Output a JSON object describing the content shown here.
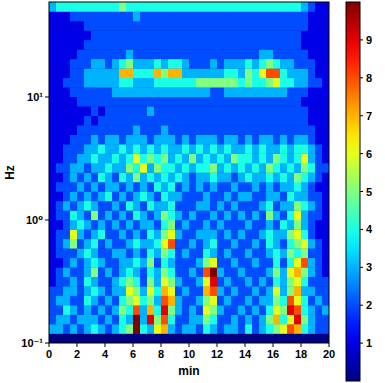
{
  "chart_data": {
    "type": "heatmap",
    "x_label": "min",
    "y_label": "Hz",
    "log": "y",
    "xlim": [
      0,
      20
    ],
    "ylim": [
      0.1,
      59.16
    ],
    "xticks": [
      0,
      2,
      4,
      6,
      8,
      10,
      12,
      14,
      16,
      18,
      20
    ],
    "yticks": [
      {
        "value": 0.1,
        "label": "10⁻¹"
      },
      {
        "value": 1,
        "label": "10⁰"
      },
      {
        "value": 10,
        "label": "10¹"
      }
    ],
    "color_range": [
      0,
      10
    ],
    "color_ticks": [
      1,
      2,
      3,
      4,
      5,
      6,
      7,
      8,
      9
    ],
    "x_edges": [
      0,
      0.5,
      1,
      1.5,
      2,
      2.5,
      3,
      3.5,
      4,
      4.5,
      5,
      5.5,
      6,
      6.5,
      7,
      7.5,
      8,
      8.5,
      9,
      9.5,
      10,
      10.5,
      11,
      11.5,
      12,
      12.5,
      13,
      13.5,
      14,
      14.5,
      15,
      15.5,
      16,
      16.5,
      17,
      17.5,
      18,
      18.5,
      19,
      19.5,
      20
    ],
    "y_edges": [
      0.1,
      0.1194,
      0.1426,
      0.1702,
      0.2032,
      0.2427,
      0.2897,
      0.3459,
      0.413,
      0.4932,
      0.5888,
      0.7031,
      0.8395,
      1.002,
      1.197,
      1.429,
      1.706,
      2.037,
      2.432,
      2.904,
      3.467,
      4.14,
      4.943,
      5.902,
      7.047,
      8.414,
      10.05,
      12,
      14.32,
      17.1,
      20.42,
      24.38,
      29.11,
      34.75,
      41.5,
      49.55,
      59.16
    ],
    "cells": [
      [
        0,
        0,
        0,
        0,
        0,
        0,
        0,
        0,
        0,
        0,
        0,
        0,
        0,
        0,
        0,
        0,
        0,
        0,
        0,
        0,
        0,
        0,
        0,
        0,
        0,
        0,
        0,
        0,
        0,
        0,
        0,
        0,
        0,
        0,
        0,
        0,
        0,
        0,
        0,
        0
      ],
      [
        3,
        3,
        2,
        3,
        2,
        3,
        4,
        3,
        2,
        3,
        4,
        5,
        10,
        4,
        3,
        6,
        7,
        3,
        2,
        3,
        3,
        2,
        4,
        3,
        2,
        3,
        3,
        2,
        4,
        2,
        3,
        4,
        5,
        6,
        8,
        7,
        4,
        3,
        2,
        2
      ],
      [
        2,
        3,
        3,
        2,
        3,
        3,
        3,
        2,
        3,
        2,
        4,
        3,
        10,
        3,
        9,
        5,
        8,
        4,
        2,
        2,
        3,
        3,
        5,
        4,
        2,
        2,
        3,
        2,
        3,
        2,
        3,
        5,
        7,
        4,
        6,
        9,
        5,
        3,
        2,
        2
      ],
      [
        2,
        2,
        4,
        3,
        2,
        3,
        2,
        3,
        2,
        3,
        5,
        4,
        8,
        3,
        7,
        4,
        9,
        5,
        3,
        2,
        3,
        2,
        6,
        5,
        3,
        2,
        2,
        3,
        2,
        3,
        2,
        4,
        6,
        5,
        9,
        8,
        4,
        3,
        2,
        3
      ],
      [
        2,
        3,
        3,
        2,
        2,
        4,
        3,
        2,
        3,
        2,
        4,
        5,
        6,
        4,
        5,
        3,
        8,
        7,
        3,
        2,
        2,
        3,
        5,
        6,
        2,
        3,
        2,
        2,
        3,
        2,
        3,
        3,
        5,
        4,
        8,
        6,
        4,
        2,
        3,
        2
      ],
      [
        2,
        2,
        3,
        3,
        2,
        3,
        4,
        3,
        2,
        3,
        3,
        6,
        5,
        3,
        6,
        4,
        7,
        6,
        2,
        3,
        2,
        2,
        7,
        8,
        3,
        2,
        3,
        2,
        2,
        3,
        2,
        3,
        6,
        3,
        5,
        7,
        3,
        3,
        2,
        2
      ],
      [
        1,
        2,
        2,
        3,
        2,
        4,
        3,
        2,
        2,
        3,
        4,
        5,
        4,
        2,
        5,
        3,
        6,
        5,
        3,
        2,
        2,
        3,
        6,
        9,
        2,
        3,
        2,
        2,
        3,
        2,
        3,
        2,
        4,
        3,
        5,
        6,
        4,
        2,
        2,
        2
      ],
      [
        1,
        2,
        3,
        2,
        2,
        3,
        5,
        2,
        3,
        2,
        3,
        4,
        3,
        2,
        4,
        3,
        5,
        4,
        2,
        2,
        3,
        2,
        8,
        10,
        3,
        2,
        2,
        3,
        2,
        2,
        2,
        3,
        5,
        3,
        6,
        7,
        5,
        3,
        2,
        1
      ],
      [
        1,
        1,
        2,
        3,
        2,
        3,
        4,
        3,
        2,
        2,
        3,
        3,
        4,
        3,
        5,
        2,
        4,
        3,
        2,
        2,
        2,
        3,
        5,
        6,
        2,
        2,
        3,
        2,
        2,
        3,
        2,
        2,
        4,
        2,
        4,
        6,
        8,
        3,
        2,
        1
      ],
      [
        1,
        2,
        2,
        2,
        3,
        4,
        3,
        2,
        2,
        3,
        3,
        2,
        3,
        2,
        4,
        3,
        5,
        4,
        2,
        3,
        2,
        2,
        4,
        3,
        2,
        3,
        2,
        2,
        3,
        2,
        2,
        3,
        4,
        3,
        5,
        4,
        5,
        2,
        2,
        1
      ],
      [
        1,
        2,
        3,
        5,
        2,
        3,
        4,
        2,
        3,
        2,
        2,
        3,
        4,
        3,
        3,
        4,
        6,
        8,
        2,
        2,
        3,
        2,
        3,
        4,
        2,
        2,
        3,
        2,
        2,
        3,
        2,
        4,
        3,
        2,
        4,
        5,
        6,
        3,
        2,
        1
      ],
      [
        1,
        2,
        2,
        6,
        3,
        2,
        3,
        4,
        2,
        2,
        3,
        2,
        3,
        2,
        4,
        3,
        5,
        6,
        3,
        2,
        2,
        3,
        3,
        3,
        2,
        3,
        2,
        3,
        2,
        2,
        3,
        4,
        3,
        3,
        5,
        6,
        4,
        2,
        1,
        1
      ],
      [
        1,
        1,
        2,
        3,
        4,
        3,
        2,
        3,
        2,
        3,
        2,
        3,
        2,
        3,
        3,
        2,
        4,
        5,
        2,
        3,
        2,
        2,
        3,
        2,
        3,
        2,
        2,
        2,
        3,
        2,
        2,
        3,
        2,
        4,
        3,
        5,
        3,
        2,
        1,
        1
      ],
      [
        1,
        2,
        2,
        4,
        3,
        2,
        5,
        2,
        3,
        2,
        3,
        2,
        4,
        3,
        2,
        3,
        5,
        4,
        3,
        2,
        3,
        2,
        2,
        3,
        2,
        3,
        2,
        3,
        2,
        3,
        2,
        5,
        3,
        2,
        4,
        6,
        3,
        2,
        2,
        1
      ],
      [
        1,
        2,
        3,
        2,
        3,
        4,
        3,
        2,
        2,
        3,
        2,
        4,
        3,
        2,
        4,
        3,
        3,
        4,
        2,
        2,
        2,
        3,
        3,
        2,
        3,
        2,
        3,
        2,
        2,
        2,
        3,
        4,
        2,
        3,
        3,
        5,
        4,
        3,
        2,
        1
      ],
      [
        1,
        1,
        2,
        3,
        2,
        3,
        2,
        3,
        4,
        2,
        3,
        2,
        3,
        4,
        3,
        2,
        4,
        3,
        3,
        2,
        2,
        2,
        3,
        2,
        2,
        3,
        2,
        3,
        3,
        2,
        2,
        3,
        3,
        2,
        4,
        3,
        3,
        2,
        2,
        1
      ],
      [
        1,
        2,
        2,
        2,
        3,
        2,
        3,
        2,
        3,
        3,
        2,
        3,
        2,
        3,
        2,
        4,
        3,
        4,
        2,
        3,
        2,
        3,
        2,
        3,
        2,
        2,
        3,
        2,
        2,
        3,
        2,
        3,
        2,
        3,
        3,
        4,
        3,
        2,
        1,
        1
      ],
      [
        1,
        1,
        2,
        3,
        2,
        3,
        2,
        4,
        3,
        2,
        4,
        3,
        5,
        3,
        4,
        3,
        4,
        3,
        4,
        3,
        2,
        3,
        3,
        4,
        3,
        3,
        2,
        3,
        4,
        3,
        3,
        4,
        3,
        4,
        3,
        5,
        4,
        3,
        2,
        1
      ],
      [
        1,
        2,
        2,
        3,
        3,
        2,
        3,
        3,
        4,
        3,
        3,
        5,
        4,
        6,
        3,
        5,
        4,
        4,
        3,
        4,
        3,
        4,
        4,
        5,
        3,
        4,
        3,
        4,
        3,
        4,
        3,
        5,
        4,
        3,
        4,
        3,
        5,
        4,
        2,
        2
      ],
      [
        1,
        1,
        2,
        2,
        3,
        3,
        4,
        3,
        3,
        4,
        3,
        4,
        6,
        4,
        5,
        4,
        5,
        3,
        4,
        3,
        5,
        3,
        4,
        3,
        4,
        3,
        5,
        4,
        4,
        3,
        4,
        3,
        5,
        4,
        3,
        4,
        6,
        3,
        2,
        1
      ],
      [
        1,
        1,
        2,
        2,
        2,
        3,
        3,
        4,
        3,
        3,
        4,
        3,
        4,
        3,
        4,
        3,
        4,
        3,
        3,
        4,
        3,
        4,
        3,
        4,
        3,
        4,
        3,
        3,
        4,
        3,
        4,
        3,
        3,
        4,
        3,
        4,
        4,
        3,
        2,
        1
      ],
      [
        1,
        1,
        1,
        2,
        2,
        2,
        3,
        2,
        3,
        3,
        2,
        3,
        3,
        3,
        2,
        3,
        3,
        3,
        2,
        3,
        2,
        3,
        3,
        3,
        2,
        3,
        3,
        2,
        3,
        2,
        3,
        3,
        2,
        3,
        2,
        3,
        3,
        2,
        1,
        1
      ],
      [
        1,
        1,
        1,
        1,
        2,
        2,
        2,
        2,
        2,
        2,
        2,
        2,
        3,
        2,
        2,
        2,
        3,
        2,
        2,
        2,
        2,
        2,
        2,
        2,
        2,
        2,
        2,
        2,
        2,
        2,
        2,
        2,
        2,
        2,
        2,
        2,
        2,
        2,
        1,
        1
      ],
      [
        1,
        1,
        1,
        1,
        1,
        2,
        1,
        2,
        2,
        2,
        2,
        2,
        2,
        2,
        2,
        2,
        2,
        2,
        2,
        2,
        2,
        2,
        2,
        2,
        2,
        2,
        2,
        2,
        2,
        2,
        2,
        2,
        2,
        2,
        2,
        2,
        2,
        1,
        1,
        1
      ],
      [
        1,
        1,
        1,
        1,
        1,
        1,
        2,
        1,
        2,
        2,
        2,
        2,
        2,
        2,
        3,
        2,
        2,
        2,
        2,
        2,
        2,
        2,
        2,
        2,
        2,
        2,
        2,
        2,
        2,
        2,
        2,
        2,
        2,
        2,
        2,
        2,
        2,
        1,
        1,
        1
      ],
      [
        1,
        1,
        1,
        1,
        2,
        2,
        2,
        2,
        2,
        2,
        2,
        2,
        2,
        2,
        2,
        2,
        2,
        2,
        2,
        2,
        2,
        2,
        2,
        2,
        2,
        2,
        2,
        2,
        2,
        2,
        2,
        2,
        2,
        2,
        2,
        2,
        1,
        1,
        1,
        1
      ],
      [
        1,
        1,
        1,
        2,
        2,
        2,
        2,
        2,
        2,
        3,
        3,
        3,
        3,
        3,
        3,
        3,
        3,
        3,
        3,
        3,
        3,
        3,
        3,
        2,
        2,
        3,
        3,
        3,
        3,
        3,
        3,
        3,
        3,
        3,
        2,
        2,
        2,
        1,
        1,
        1
      ],
      [
        1,
        1,
        2,
        2,
        2,
        3,
        3,
        3,
        3,
        3,
        4,
        4,
        3,
        3,
        3,
        4,
        4,
        4,
        4,
        4,
        4,
        5,
        5,
        5,
        5,
        5,
        5,
        4,
        5,
        4,
        4,
        5,
        6,
        4,
        4,
        3,
        3,
        2,
        2,
        1
      ],
      [
        1,
        1,
        1,
        2,
        2,
        3,
        3,
        3,
        3,
        3,
        7,
        7,
        4,
        4,
        4,
        7,
        5,
        7,
        7,
        3,
        3,
        3,
        3,
        3,
        3,
        4,
        4,
        3,
        5,
        4,
        6,
        8,
        8,
        4,
        3,
        3,
        3,
        2,
        1,
        1
      ],
      [
        1,
        1,
        1,
        2,
        2,
        2,
        3,
        3,
        2,
        3,
        4,
        5,
        3,
        3,
        3,
        4,
        3,
        4,
        4,
        3,
        2,
        2,
        2,
        3,
        2,
        3,
        3,
        3,
        4,
        3,
        4,
        5,
        4,
        3,
        3,
        2,
        2,
        2,
        1,
        1
      ],
      [
        1,
        1,
        1,
        1,
        2,
        2,
        2,
        2,
        2,
        2,
        2,
        3,
        2,
        2,
        2,
        2,
        2,
        2,
        2,
        2,
        2,
        2,
        2,
        2,
        2,
        2,
        2,
        2,
        2,
        2,
        3,
        3,
        2,
        2,
        2,
        2,
        2,
        1,
        1,
        1
      ],
      [
        1,
        1,
        1,
        1,
        1,
        2,
        2,
        2,
        2,
        2,
        2,
        2,
        2,
        2,
        2,
        2,
        2,
        2,
        2,
        2,
        2,
        2,
        2,
        2,
        2,
        2,
        2,
        2,
        2,
        2,
        2,
        2,
        2,
        2,
        2,
        2,
        1,
        1,
        1,
        1
      ],
      [
        1,
        1,
        1,
        1,
        1,
        1,
        2,
        2,
        2,
        2,
        2,
        2,
        2,
        2,
        2,
        2,
        2,
        2,
        2,
        2,
        2,
        2,
        2,
        2,
        2,
        2,
        2,
        2,
        2,
        2,
        2,
        2,
        2,
        2,
        2,
        2,
        1,
        1,
        1,
        1
      ],
      [
        1,
        1,
        1,
        1,
        1,
        2,
        2,
        2,
        2,
        2,
        2,
        2,
        2,
        2,
        2,
        2,
        2,
        2,
        2,
        2,
        2,
        2,
        2,
        2,
        2,
        2,
        2,
        2,
        2,
        2,
        2,
        2,
        2,
        2,
        2,
        2,
        2,
        1,
        1,
        1
      ],
      [
        1,
        1,
        1,
        2,
        2,
        2,
        2,
        2,
        2,
        2,
        2,
        2,
        3,
        2,
        2,
        2,
        2,
        2,
        2,
        2,
        2,
        2,
        2,
        2,
        2,
        2,
        2,
        2,
        2,
        2,
        2,
        2,
        2,
        2,
        2,
        2,
        2,
        1,
        1,
        1
      ],
      [
        3,
        4,
        4,
        4,
        4,
        4,
        4,
        4,
        4,
        4,
        5,
        4,
        4,
        4,
        4,
        4,
        4,
        4,
        4,
        4,
        4,
        4,
        4,
        4,
        4,
        4,
        4,
        4,
        4,
        4,
        4,
        4,
        4,
        4,
        4,
        4,
        3,
        2,
        1,
        1
      ]
    ]
  }
}
